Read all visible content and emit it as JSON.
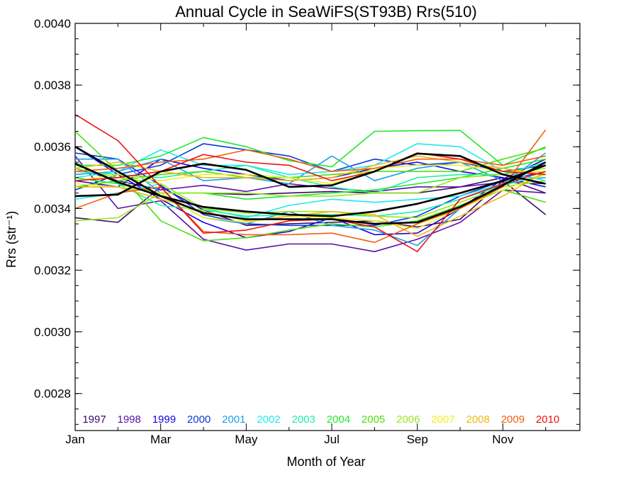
{
  "chart_data": {
    "type": "line",
    "title": "Annual Cycle in SeaWiFS(ST93B) Rrs(510)",
    "xlabel": "Month of Year",
    "ylabel": "Rrs (str⁻¹)",
    "xlim": [
      1,
      12.8
    ],
    "ylim": [
      0.00268,
      0.004
    ],
    "x_ticks": [
      {
        "value": 1,
        "label": "Jan"
      },
      {
        "value": 3,
        "label": "Mar"
      },
      {
        "value": 5,
        "label": "May"
      },
      {
        "value": 7,
        "label": "Jul"
      },
      {
        "value": 9,
        "label": "Sep"
      },
      {
        "value": 11,
        "label": "Nov"
      }
    ],
    "y_ticks": [
      "0.0028",
      "0.0030",
      "0.0032",
      "0.0034",
      "0.0036",
      "0.0038",
      "0.0040"
    ],
    "y_tick_values": [
      0.0028,
      0.003,
      0.0032,
      0.0034,
      0.0036,
      0.0038,
      0.004
    ],
    "x": [
      1,
      2,
      3,
      4,
      5,
      6,
      7,
      8,
      9,
      10,
      11,
      12
    ],
    "series": [
      {
        "name": "1997",
        "color": "#3a0a6a",
        "values": [
          0.00337,
          0.003355,
          0.00347,
          0.003395,
          0.003345,
          0.00335,
          0.003355,
          0.00336,
          0.00334,
          0.003365,
          0.00349,
          0.00338
        ]
      },
      {
        "name": "1997",
        "color": "#3a0a6a",
        "values": [
          null,
          null,
          null,
          0.00345,
          0.003445,
          0.00345,
          0.003455,
          0.00345,
          0.00345,
          0.00347,
          0.0035,
          0.00345
        ]
      },
      {
        "name": "1998",
        "color": "#5a10a8",
        "values": [
          0.00357,
          0.0034,
          0.003425,
          0.0033,
          0.003265,
          0.003285,
          0.003285,
          0.00326,
          0.0033,
          0.003355,
          0.00346,
          0.00345
        ]
      },
      {
        "name": "1998",
        "color": "#5a10a8",
        "values": [
          0.00353,
          0.00349,
          0.00346,
          0.003475,
          0.003455,
          0.00348,
          0.003465,
          0.003455,
          0.00347,
          0.00347,
          0.003485,
          0.00348
        ]
      },
      {
        "name": "1999",
        "color": "#1a00e0",
        "values": [
          0.0036,
          0.00351,
          0.00343,
          0.003355,
          0.003305,
          0.003325,
          0.00337,
          0.003315,
          0.00332,
          0.0034,
          0.003495,
          0.00356
        ]
      },
      {
        "name": "1999",
        "color": "#1a00e0",
        "values": [
          0.00349,
          0.00347,
          0.00356,
          0.00353,
          0.00351,
          0.00349,
          0.0035,
          0.00353,
          0.00355,
          0.00352,
          0.0035,
          0.00347
        ]
      },
      {
        "name": "2000",
        "color": "#0a3ad8",
        "values": [
          0.00358,
          0.00356,
          0.003475,
          0.00338,
          0.00335,
          0.003345,
          0.003345,
          0.003345,
          0.003375,
          0.00344,
          0.00349,
          0.00352
        ]
      },
      {
        "name": "2000",
        "color": "#0a3ad8",
        "values": [
          0.00346,
          0.00351,
          0.00354,
          0.00361,
          0.00359,
          0.00357,
          0.00352,
          0.00356,
          0.00354,
          0.00355,
          0.00352,
          0.00354
        ]
      },
      {
        "name": "2001",
        "color": "#1e9ef0",
        "values": [
          0.00356,
          0.00356,
          0.00345,
          0.00337,
          0.00335,
          0.00339,
          0.003345,
          0.00333,
          0.00328,
          0.0034,
          0.00348,
          0.00358
        ]
      },
      {
        "name": "2001",
        "color": "#1e9ef0",
        "values": [
          0.00351,
          0.00352,
          0.00356,
          0.00349,
          0.0035,
          0.00348,
          0.00357,
          0.00349,
          0.00353,
          0.00355,
          0.00349,
          0.0035
        ]
      },
      {
        "name": "2002",
        "color": "#20e8f0",
        "values": [
          0.0035,
          0.00352,
          0.00359,
          0.00354,
          0.00354,
          0.00351,
          0.00352,
          0.00354,
          0.00361,
          0.0036,
          0.00352,
          0.00349
        ]
      },
      {
        "name": "2002",
        "color": "#20e8f0",
        "values": [
          0.00343,
          0.00345,
          0.00348,
          0.0034,
          0.00337,
          0.00341,
          0.00343,
          0.00342,
          0.00343,
          0.00344,
          0.00348,
          0.00352
        ]
      },
      {
        "name": "2003",
        "color": "#20f0a8",
        "values": [
          0.00352,
          0.00351,
          0.0035,
          0.00352,
          0.00354,
          0.0035,
          0.00347,
          0.00345,
          0.0035,
          0.00351,
          0.00351,
          0.00355
        ]
      },
      {
        "name": "2003",
        "color": "#20f0a8",
        "values": [
          0.00355,
          0.00348,
          0.00341,
          0.003395,
          0.003375,
          0.00338,
          0.00338,
          0.003375,
          0.00339,
          0.00343,
          0.003475,
          0.00351
        ]
      },
      {
        "name": "2004",
        "color": "#20e830",
        "values": [
          0.00354,
          0.00354,
          0.00357,
          0.00363,
          0.0036,
          0.003555,
          0.003535,
          0.00365,
          0.003652,
          0.003653,
          0.00354,
          0.0036
        ]
      },
      {
        "name": "2004",
        "color": "#20e830",
        "values": [
          0.0035,
          0.00348,
          0.00345,
          0.00345,
          0.00343,
          0.00344,
          0.00345,
          0.00346,
          0.00348,
          0.0035,
          0.00353,
          0.00356
        ]
      },
      {
        "name": "2005",
        "color": "#50e010",
        "values": [
          0.00365,
          0.00352,
          0.00336,
          0.003295,
          0.003305,
          0.00333,
          0.00335,
          0.00334,
          0.00336,
          0.00341,
          0.00346,
          0.00342
        ]
      },
      {
        "name": "2005",
        "color": "#50e010",
        "values": [
          0.00347,
          0.00349,
          0.00351,
          0.00352,
          0.0035,
          0.0035,
          0.00351,
          0.00352,
          0.00352,
          0.00352,
          0.00356,
          0.003595
        ]
      },
      {
        "name": "2006",
        "color": "#98e820",
        "values": [
          0.00336,
          0.00337,
          0.00345,
          0.00345,
          0.00345,
          0.00344,
          0.00344,
          0.00345,
          0.00345,
          0.0035,
          0.00351,
          0.00353
        ]
      },
      {
        "name": "2006",
        "color": "#98e820",
        "values": [
          0.00353,
          0.0035,
          0.00348,
          0.0034,
          0.003385,
          0.00339,
          0.00339,
          0.003375,
          0.00337,
          0.00342,
          0.00347,
          0.00349
        ]
      },
      {
        "name": "2007",
        "color": "#f0f020",
        "values": [
          0.00349,
          0.00351,
          0.00349,
          0.00351,
          0.00351,
          0.0035,
          0.00348,
          0.00353,
          0.00354,
          0.00354,
          0.00352,
          0.00352
        ]
      },
      {
        "name": "2007",
        "color": "#f0f020",
        "values": [
          0.00348,
          0.00347,
          0.00345,
          0.00337,
          0.003355,
          0.003375,
          0.00337,
          0.00336,
          0.003335,
          0.0034,
          0.00346,
          0.00351
        ]
      },
      {
        "name": "2008",
        "color": "#f0b810",
        "values": [
          0.00347,
          0.00347,
          0.00343,
          0.00339,
          0.00336,
          0.003375,
          0.00339,
          0.00338,
          0.00331,
          0.003375,
          0.00344,
          0.00352
        ]
      },
      {
        "name": "2008",
        "color": "#f0b810",
        "values": [
          0.00353,
          0.00355,
          0.00352,
          0.0035,
          0.0035,
          0.00349,
          0.0035,
          0.00354,
          0.00357,
          0.00355,
          0.00353,
          0.00351
        ]
      },
      {
        "name": "2009",
        "color": "#f06010",
        "values": [
          0.0034,
          0.00345,
          0.00347,
          0.003325,
          0.003315,
          0.003315,
          0.00332,
          0.00329,
          0.00335,
          0.0034,
          0.00347,
          0.003655
        ]
      },
      {
        "name": "2009",
        "color": "#f06010",
        "values": [
          0.00352,
          0.00353,
          0.00355,
          0.00356,
          0.00359,
          0.00356,
          0.00352,
          0.00353,
          0.00356,
          0.00356,
          0.00354,
          0.00357
        ]
      },
      {
        "name": "2010",
        "color": "#f01010",
        "values": [
          0.003705,
          0.00362,
          0.00347,
          0.00332,
          0.00333,
          0.00336,
          0.003365,
          0.00334,
          0.00326,
          0.00343,
          0.00348,
          0.00352
        ]
      },
      {
        "name": "2010",
        "color": "#f01010",
        "values": [
          0.00349,
          0.0035,
          0.00352,
          0.003575,
          0.00355,
          0.00354,
          0.00349,
          0.00352,
          0.00358,
          0.00356,
          0.00352,
          0.00351
        ]
      },
      {
        "name": "",
        "color": "#000000",
        "width": 2.6,
        "values": [
          0.00344,
          0.003445,
          0.00352,
          0.003545,
          0.003525,
          0.00347,
          0.003475,
          0.00352,
          0.003578,
          0.00357,
          0.00351,
          0.00348
        ]
      },
      {
        "name": "",
        "color": "#000000",
        "width": 2.6,
        "values": [
          0.0036,
          0.00352,
          0.00344,
          0.003385,
          0.003365,
          0.003365,
          0.003365,
          0.00335,
          0.003355,
          0.003405,
          0.003475,
          0.00355
        ]
      },
      {
        "name": "",
        "color": "#000000",
        "width": 2.6,
        "values": [
          0.003545,
          0.003485,
          0.00344,
          0.003405,
          0.00339,
          0.00338,
          0.003375,
          0.00339,
          0.003415,
          0.00345,
          0.00349,
          0.00354
        ]
      }
    ],
    "legend": [
      {
        "label": "1997",
        "color": "#3a0a6a"
      },
      {
        "label": "1998",
        "color": "#5a10a8"
      },
      {
        "label": "1999",
        "color": "#1a00e0"
      },
      {
        "label": "2000",
        "color": "#0a3ad8"
      },
      {
        "label": "2001",
        "color": "#1e9ef0"
      },
      {
        "label": "2002",
        "color": "#20e8f0"
      },
      {
        "label": "2003",
        "color": "#20f0a8"
      },
      {
        "label": "2004",
        "color": "#20e830"
      },
      {
        "label": "2005",
        "color": "#50e010"
      },
      {
        "label": "2006",
        "color": "#98e820"
      },
      {
        "label": "2007",
        "color": "#f0f020"
      },
      {
        "label": "2008",
        "color": "#f0b810"
      },
      {
        "label": "2009",
        "color": "#f06010"
      },
      {
        "label": "2010",
        "color": "#f01010"
      }
    ],
    "legend_position": "bottom inside plot",
    "grid": false
  }
}
